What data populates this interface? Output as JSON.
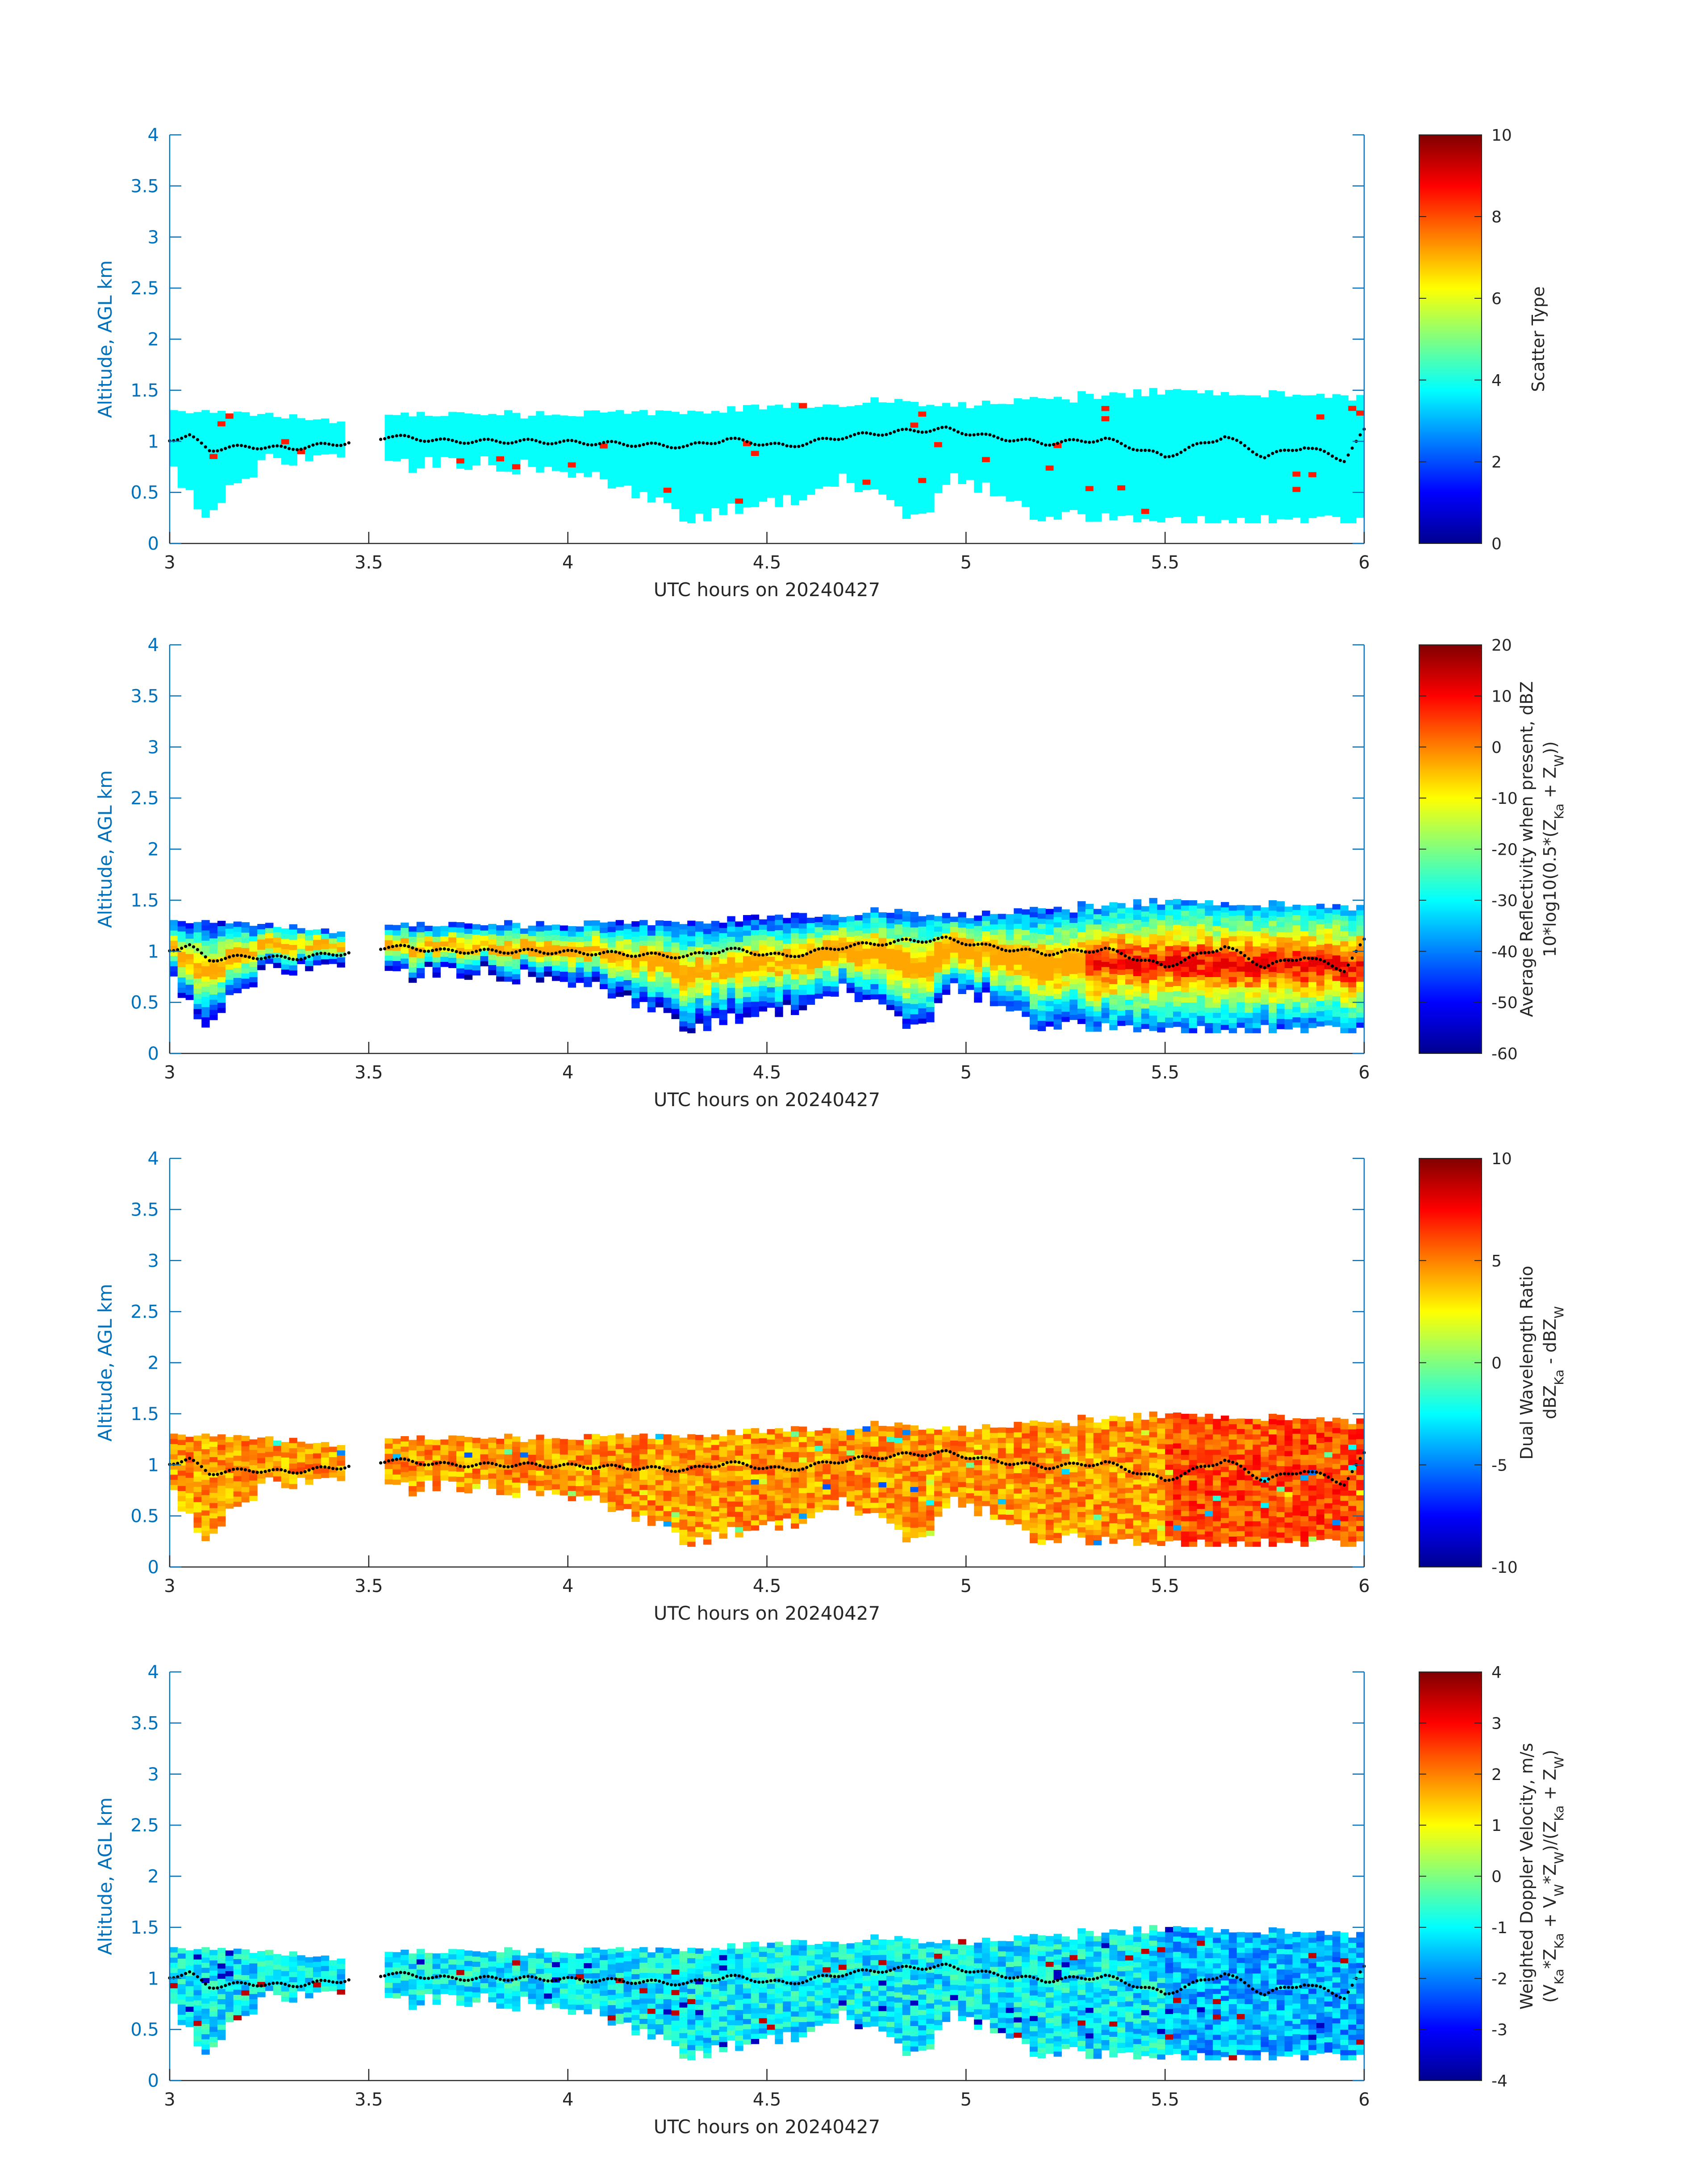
{
  "chart_data": [
    {
      "type": "heatmap",
      "xlabel": "UTC hours on 20240427",
      "ylabel": "Altitude, AGL km",
      "xlim": [
        3,
        6
      ],
      "ylim": [
        0,
        4
      ],
      "xticks": [
        "3",
        "3.5",
        "4",
        "4.5",
        "5",
        "5.5",
        "6"
      ],
      "yticks": [
        "0",
        "0.5",
        "1",
        "1.5",
        "2",
        "2.5",
        "3",
        "3.5",
        "4"
      ],
      "colorbar": {
        "label_lines": [
          "Scatter Type"
        ],
        "range": [
          0,
          10
        ],
        "ticks": [
          "0",
          "2",
          "4",
          "6",
          "8",
          "10"
        ]
      },
      "field": "scatter_type",
      "dominant_value": 3.8,
      "colormap": "jet"
    },
    {
      "type": "heatmap",
      "xlabel": "UTC hours on 20240427",
      "ylabel": "Altitude, AGL km",
      "xlim": [
        3,
        6
      ],
      "ylim": [
        0,
        4
      ],
      "xticks": [
        "3",
        "3.5",
        "4",
        "4.5",
        "5",
        "5.5",
        "6"
      ],
      "yticks": [
        "0",
        "0.5",
        "1",
        "1.5",
        "2",
        "2.5",
        "3",
        "3.5",
        "4"
      ],
      "colorbar": {
        "label_lines": [
          "Average Reflectivity when present, dBZ",
          "10*log10(0.5*(Z_Ka + Z_W))"
        ],
        "range": [
          -60,
          20
        ],
        "ticks": [
          "-60",
          "-50",
          "-40",
          "-30",
          "-20",
          "-10",
          "0",
          "10",
          "20"
        ]
      },
      "field": "reflectivity",
      "colormap": "jet"
    },
    {
      "type": "heatmap",
      "xlabel": "UTC hours on 20240427",
      "ylabel": "Altitude, AGL km",
      "xlim": [
        3,
        6
      ],
      "ylim": [
        0,
        4
      ],
      "xticks": [
        "3",
        "3.5",
        "4",
        "4.5",
        "5",
        "5.5",
        "6"
      ],
      "yticks": [
        "0",
        "0.5",
        "1",
        "1.5",
        "2",
        "2.5",
        "3",
        "3.5",
        "4"
      ],
      "colorbar": {
        "label_lines": [
          "Dual Wavelength Ratio",
          "dBZ_Ka - dBZ_W"
        ],
        "range": [
          -10,
          10
        ],
        "ticks": [
          "-10",
          "-5",
          "0",
          "5",
          "10"
        ]
      },
      "field": "dwr",
      "colormap": "jet"
    },
    {
      "type": "heatmap",
      "xlabel": "UTC hours on 20240427",
      "ylabel": "Altitude, AGL km",
      "xlim": [
        3,
        6
      ],
      "ylim": [
        0,
        4
      ],
      "xticks": [
        "3",
        "3.5",
        "4",
        "4.5",
        "5",
        "5.5",
        "6"
      ],
      "yticks": [
        "0",
        "0.5",
        "1",
        "1.5",
        "2",
        "2.5",
        "3",
        "3.5",
        "4"
      ],
      "colorbar": {
        "label_lines": [
          "Weighted Doppler Velocity, m/s",
          "(V_Ka*Z_Ka + V_W*Z_W)/(Z_Ka + Z_W)"
        ],
        "range": [
          -4,
          4
        ],
        "ticks": [
          "-4",
          "-3",
          "-2",
          "-1",
          "0",
          "1",
          "2",
          "3",
          "4"
        ]
      },
      "field": "doppler_velocity",
      "colormap": "jet"
    }
  ],
  "shared": {
    "time_step_hours": 0.02,
    "gaps": [
      [
        3.44,
        3.54
      ]
    ],
    "cloud_top_km": [
      [
        3.0,
        1.3
      ],
      [
        3.3,
        1.25
      ],
      [
        3.42,
        1.2
      ],
      [
        3.55,
        1.25
      ],
      [
        4.0,
        1.27
      ],
      [
        4.5,
        1.32
      ],
      [
        4.8,
        1.4
      ],
      [
        5.0,
        1.35
      ],
      [
        5.2,
        1.42
      ],
      [
        5.5,
        1.48
      ],
      [
        6.0,
        1.45
      ]
    ],
    "cloud_base_km": [
      [
        3.0,
        0.75
      ],
      [
        3.06,
        0.45
      ],
      [
        3.1,
        0.25
      ],
      [
        3.14,
        0.5
      ],
      [
        3.25,
        0.8
      ],
      [
        3.43,
        0.85
      ],
      [
        3.55,
        0.75
      ],
      [
        3.75,
        0.8
      ],
      [
        4.0,
        0.7
      ],
      [
        4.15,
        0.55
      ],
      [
        4.25,
        0.35
      ],
      [
        4.3,
        0.2
      ],
      [
        4.4,
        0.35
      ],
      [
        4.5,
        0.4
      ],
      [
        4.6,
        0.45
      ],
      [
        4.7,
        0.65
      ],
      [
        4.8,
        0.4
      ],
      [
        4.85,
        0.25
      ],
      [
        4.9,
        0.25
      ],
      [
        4.95,
        0.65
      ],
      [
        5.05,
        0.55
      ],
      [
        5.1,
        0.4
      ],
      [
        5.2,
        0.25
      ],
      [
        5.4,
        0.3
      ],
      [
        5.5,
        0.22
      ],
      [
        6.0,
        0.22
      ]
    ],
    "cloud_base_line_km": [
      [
        3.0,
        1.02
      ],
      [
        3.05,
        1.05
      ],
      [
        3.1,
        0.92
      ],
      [
        3.2,
        0.95
      ],
      [
        3.3,
        0.93
      ],
      [
        3.43,
        0.98
      ],
      [
        3.55,
        1.05
      ],
      [
        3.7,
        1.0
      ],
      [
        3.9,
        1.0
      ],
      [
        4.1,
        0.98
      ],
      [
        4.3,
        0.95
      ],
      [
        4.4,
        1.02
      ],
      [
        4.55,
        0.95
      ],
      [
        4.7,
        1.05
      ],
      [
        4.85,
        1.1
      ],
      [
        4.95,
        1.12
      ],
      [
        5.05,
        1.05
      ],
      [
        5.2,
        0.98
      ],
      [
        5.35,
        1.02
      ],
      [
        5.5,
        0.85
      ],
      [
        5.65,
        1.05
      ],
      [
        5.75,
        0.85
      ],
      [
        5.85,
        0.95
      ],
      [
        5.95,
        0.82
      ],
      [
        6.0,
        1.1
      ]
    ]
  }
}
